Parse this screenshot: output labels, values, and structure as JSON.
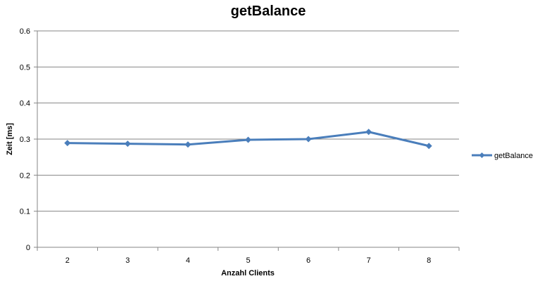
{
  "chart_data": {
    "type": "line",
    "title": "getBalance",
    "xlabel": "Anzahl Clients",
    "ylabel": "Zeit [ms]",
    "categories": [
      "2",
      "3",
      "4",
      "5",
      "6",
      "7",
      "8"
    ],
    "ylim": [
      0,
      0.6
    ],
    "yticks": [
      "0",
      "0.1",
      "0.2",
      "0.3",
      "0.4",
      "0.5",
      "0.6"
    ],
    "grid": true,
    "legend_position": "right",
    "series": [
      {
        "name": "getBalance",
        "color": "#4A7EBB",
        "marker": "diamond",
        "values": [
          0.289,
          0.287,
          0.285,
          0.298,
          0.3,
          0.32,
          0.281
        ]
      }
    ]
  }
}
